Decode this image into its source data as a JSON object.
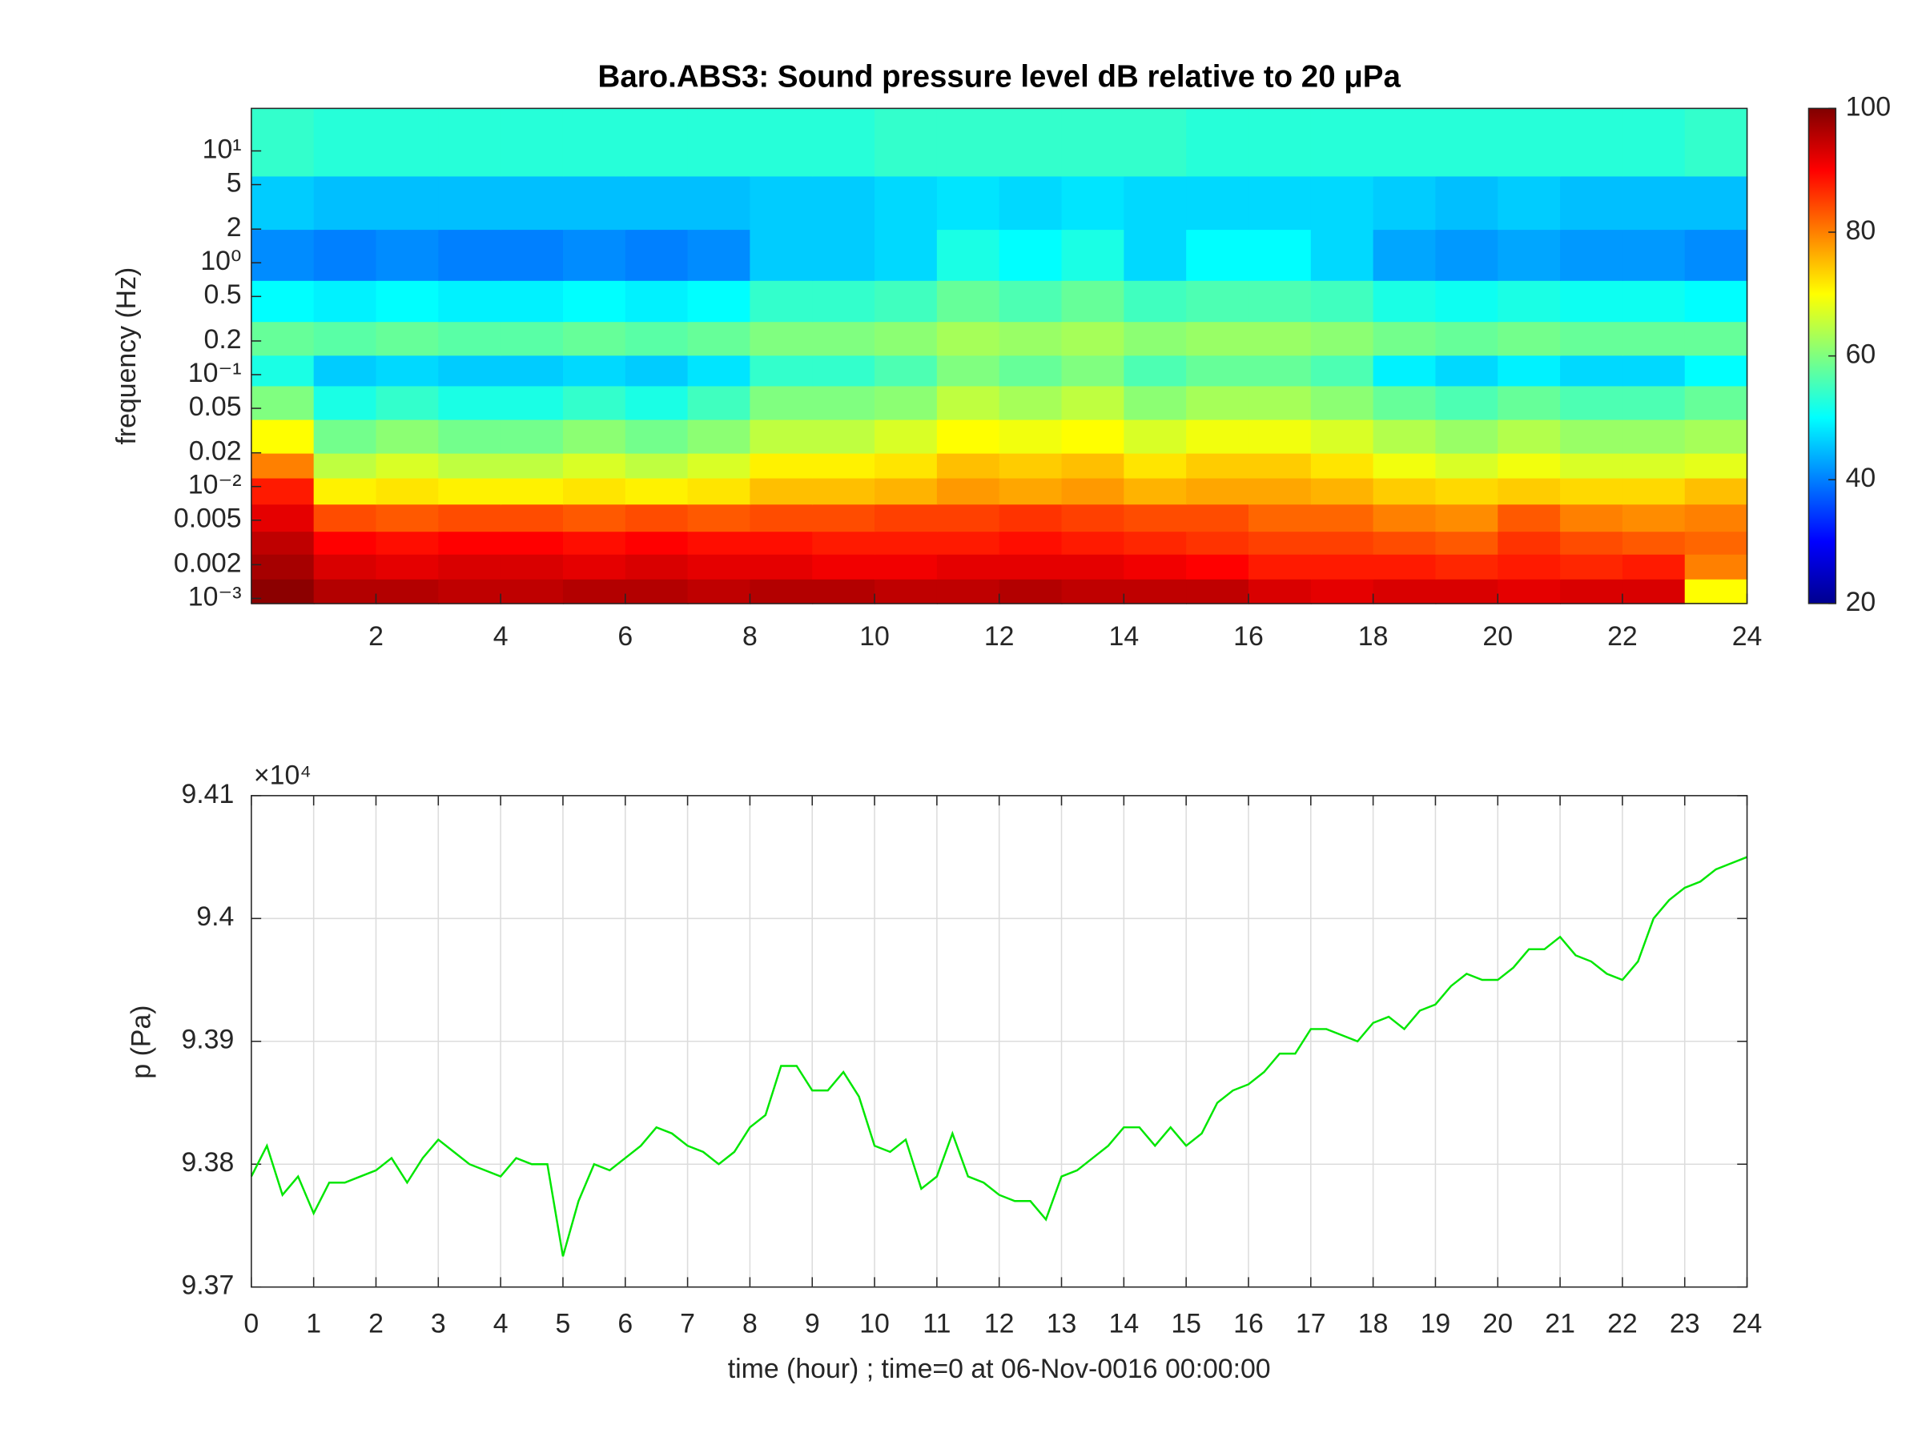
{
  "chart_data": [
    {
      "type": "heatmap",
      "title": "Baro.ABS3: Sound pressure level dB relative to 20 μPa",
      "ylabel": "frequency (Hz)",
      "colormap": "jet",
      "log_y": true,
      "x_edges": [
        0,
        1,
        2,
        3,
        4,
        5,
        6,
        7,
        8,
        9,
        10,
        11,
        12,
        13,
        14,
        15,
        16,
        17,
        18,
        19,
        20,
        21,
        22,
        23,
        24
      ],
      "y_edges": [
        0.0009,
        0.0015,
        0.0025,
        0.004,
        0.007,
        0.012,
        0.02,
        0.04,
        0.08,
        0.15,
        0.3,
        0.7,
        2,
        6,
        24
      ],
      "z": [
        [
          99,
          96,
          96,
          95,
          95,
          96,
          96,
          95,
          96,
          96,
          95,
          95,
          96,
          95,
          95,
          95,
          93,
          92,
          93,
          93,
          92,
          93,
          93,
          70
        ],
        [
          97,
          93,
          92,
          93,
          93,
          92,
          93,
          92,
          92,
          91,
          91,
          92,
          92,
          92,
          91,
          90,
          88,
          88,
          88,
          87,
          88,
          87,
          88,
          80
        ],
        [
          95,
          90,
          89,
          90,
          90,
          89,
          90,
          89,
          89,
          88,
          88,
          88,
          89,
          88,
          87,
          86,
          85,
          85,
          84,
          83,
          86,
          84,
          83,
          82
        ],
        [
          92,
          84,
          83,
          84,
          84,
          83,
          84,
          83,
          84,
          84,
          85,
          85,
          86,
          85,
          84,
          84,
          82,
          82,
          80,
          79,
          83,
          80,
          79,
          80
        ],
        [
          88,
          71,
          72,
          71,
          71,
          72,
          71,
          72,
          75,
          75,
          76,
          78,
          77,
          78,
          76,
          77,
          77,
          76,
          74,
          73,
          74,
          73,
          73,
          75
        ],
        [
          80,
          65,
          67,
          65,
          65,
          67,
          65,
          67,
          71,
          71,
          72,
          75,
          74,
          75,
          72,
          74,
          74,
          72,
          69,
          67,
          69,
          67,
          67,
          68
        ],
        [
          70,
          59,
          61,
          59,
          59,
          61,
          59,
          61,
          65,
          65,
          67,
          70,
          69,
          70,
          67,
          69,
          69,
          67,
          64,
          62,
          64,
          62,
          62,
          63
        ],
        [
          60,
          52,
          54,
          52,
          52,
          54,
          52,
          55,
          60,
          60,
          61,
          65,
          63,
          65,
          61,
          63,
          63,
          61,
          58,
          56,
          58,
          56,
          56,
          58
        ],
        [
          52,
          46,
          47,
          46,
          46,
          47,
          46,
          48,
          54,
          54,
          56,
          60,
          58,
          60,
          56,
          58,
          58,
          56,
          49,
          47,
          49,
          47,
          47,
          50
        ],
        [
          58,
          57,
          58,
          57,
          57,
          58,
          57,
          58,
          60,
          60,
          61,
          63,
          62,
          63,
          61,
          62,
          62,
          61,
          59,
          58,
          59,
          58,
          58,
          58
        ],
        [
          50,
          49,
          50,
          49,
          49,
          50,
          49,
          50,
          54,
          54,
          55,
          58,
          56,
          58,
          55,
          56,
          56,
          55,
          52,
          51,
          52,
          51,
          51,
          50
        ],
        [
          41,
          40,
          41,
          40,
          40,
          41,
          40,
          41,
          46,
          46,
          47,
          52,
          50,
          52,
          47,
          50,
          50,
          47,
          43,
          42,
          43,
          42,
          42,
          41
        ],
        [
          46,
          45,
          45,
          45,
          45,
          45,
          45,
          45,
          46,
          46,
          47,
          48,
          47,
          48,
          47,
          47,
          47,
          47,
          46,
          45,
          46,
          45,
          45,
          45
        ],
        [
          54,
          53,
          53,
          53,
          53,
          53,
          53,
          53,
          53,
          53,
          54,
          54,
          54,
          54,
          54,
          53,
          53,
          53,
          53,
          53,
          53,
          53,
          53,
          54
        ]
      ],
      "xlim": [
        0,
        24
      ],
      "xticks": [
        2,
        4,
        6,
        8,
        10,
        12,
        14,
        16,
        18,
        20,
        22,
        24
      ],
      "ylim": [
        0.0009,
        24
      ],
      "yticks": [
        {
          "value": 0.001,
          "label": "10⁻³"
        },
        0.002,
        0.005,
        {
          "value": 0.01,
          "label": "10⁻²"
        },
        0.02,
        0.05,
        {
          "value": 0.1,
          "label": "10⁻¹"
        },
        0.2,
        0.5,
        {
          "value": 1,
          "label": "10⁰"
        },
        2,
        5,
        {
          "value": 10,
          "label": "10¹"
        }
      ],
      "clim": [
        20,
        100
      ],
      "cticks": [
        20,
        40,
        60,
        80,
        100
      ]
    },
    {
      "type": "line",
      "ylabel": "p (Pa)",
      "xlabel": "time (hour) ; time=0 at 06-Nov-0016 00:00:00",
      "y_exponent_label": "×10⁴",
      "grid": true,
      "x": [
        0,
        0.25,
        0.5,
        0.75,
        1,
        1.25,
        1.5,
        1.75,
        2,
        2.25,
        2.5,
        2.75,
        3,
        3.25,
        3.5,
        3.75,
        4,
        4.25,
        4.5,
        4.75,
        5,
        5.25,
        5.5,
        5.75,
        6,
        6.25,
        6.5,
        6.75,
        7,
        7.25,
        7.5,
        7.75,
        8,
        8.25,
        8.5,
        8.75,
        9,
        9.25,
        9.5,
        9.75,
        10,
        10.25,
        10.5,
        10.75,
        11,
        11.25,
        11.5,
        11.75,
        12,
        12.25,
        12.5,
        12.75,
        13,
        13.25,
        13.5,
        13.75,
        14,
        14.25,
        14.5,
        14.75,
        15,
        15.25,
        15.5,
        15.75,
        16,
        16.25,
        16.5,
        16.75,
        17,
        17.25,
        17.5,
        17.75,
        18,
        18.25,
        18.5,
        18.75,
        19,
        19.25,
        19.5,
        19.75,
        20,
        20.25,
        20.5,
        20.75,
        21,
        21.25,
        21.5,
        21.75,
        22,
        22.25,
        22.5,
        22.75,
        23,
        23.25,
        23.5,
        23.75,
        24
      ],
      "series": [
        {
          "color": "#00e600",
          "values": [
            93790,
            93815,
            93775,
            93790,
            93760,
            93785,
            93785,
            93790,
            93795,
            93805,
            93785,
            93805,
            93820,
            93810,
            93800,
            93795,
            93790,
            93805,
            93800,
            93800,
            93725,
            93770,
            93800,
            93795,
            93805,
            93815,
            93830,
            93825,
            93815,
            93810,
            93800,
            93810,
            93830,
            93840,
            93880,
            93880,
            93860,
            93860,
            93875,
            93855,
            93815,
            93810,
            93820,
            93780,
            93790,
            93825,
            93790,
            93785,
            93775,
            93770,
            93770,
            93755,
            93790,
            93795,
            93805,
            93815,
            93830,
            93830,
            93815,
            93830,
            93815,
            93825,
            93850,
            93860,
            93865,
            93875,
            93890,
            93890,
            93910,
            93910,
            93905,
            93900,
            93915,
            93920,
            93910,
            93925,
            93930,
            93945,
            93955,
            93950,
            93950,
            93960,
            93975,
            93975,
            93985,
            93970,
            93965,
            93955,
            93950,
            93965,
            94000,
            94015,
            94025,
            94030,
            94040,
            94045,
            94050
          ]
        }
      ],
      "xlim": [
        0,
        24
      ],
      "xticks": [
        0,
        1,
        2,
        3,
        4,
        5,
        6,
        7,
        8,
        9,
        10,
        11,
        12,
        13,
        14,
        15,
        16,
        17,
        18,
        19,
        20,
        21,
        22,
        23,
        24
      ],
      "ylim": [
        93700,
        94100
      ],
      "yticks": [
        {
          "value": 93700,
          "label": "9.37"
        },
        {
          "value": 93800,
          "label": "9.38"
        },
        {
          "value": 93900,
          "label": "9.39"
        },
        {
          "value": 94000,
          "label": "9.4"
        },
        {
          "value": 94100,
          "label": "9.41"
        }
      ]
    }
  ]
}
